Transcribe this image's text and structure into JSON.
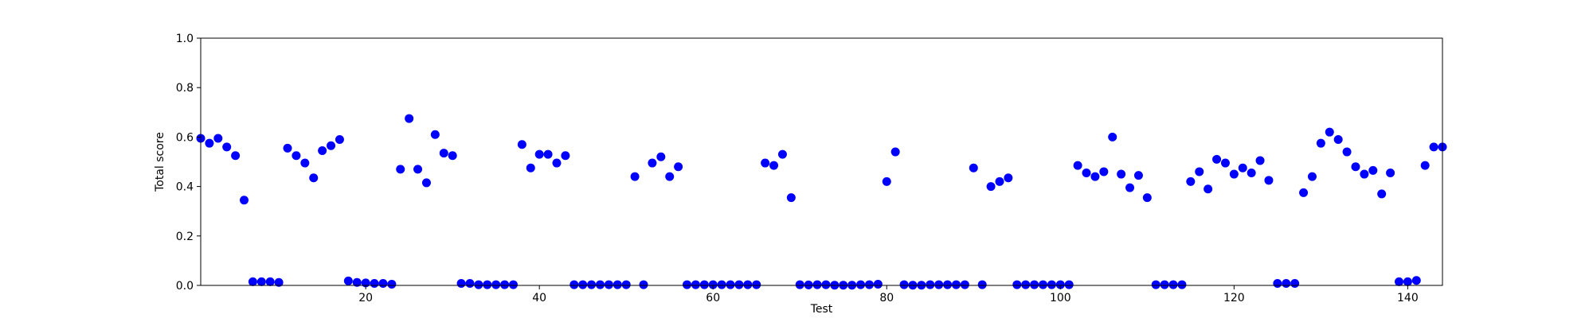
{
  "chart_data": {
    "type": "scatter",
    "title": "",
    "xlabel": "Test",
    "ylabel": "Total score",
    "xlim": [
      1,
      144
    ],
    "ylim": [
      0.0,
      1.0
    ],
    "x_ticks": [
      20,
      40,
      60,
      80,
      100,
      120,
      140
    ],
    "y_ticks": [
      0.0,
      0.2,
      0.4,
      0.6,
      0.8,
      1.0
    ],
    "x_tick_labels": [
      "20",
      "40",
      "60",
      "80",
      "100",
      "120",
      "140"
    ],
    "y_tick_labels": [
      "0.0",
      "0.2",
      "0.4",
      "0.6",
      "0.8",
      "1.0"
    ],
    "grid": false,
    "marker_color": "#0000ff",
    "series": [
      {
        "x": [
          1,
          2,
          3,
          4,
          5,
          6,
          7,
          8,
          9,
          10,
          11,
          12,
          13,
          14,
          15,
          16,
          17,
          18,
          19,
          20,
          21,
          22,
          23,
          24,
          25,
          26,
          27,
          28,
          29,
          30,
          31,
          32,
          33,
          34,
          35,
          36,
          37,
          38,
          39,
          40,
          41,
          42,
          43,
          44,
          45,
          46,
          47,
          48,
          49,
          50,
          51,
          52,
          53,
          54,
          55,
          56,
          57,
          58,
          59,
          60,
          61,
          62,
          63,
          64,
          65,
          66,
          67,
          68,
          69,
          70,
          71,
          72,
          73,
          74,
          75,
          76,
          77,
          78,
          79,
          80,
          81,
          82,
          83,
          84,
          85,
          86,
          87,
          88,
          89,
          90,
          91,
          92,
          93,
          94,
          95,
          96,
          97,
          98,
          99,
          100,
          101,
          102,
          103,
          104,
          105,
          106,
          107,
          108,
          109,
          110,
          111,
          112,
          113,
          114,
          115,
          116,
          117,
          118,
          119,
          120,
          121,
          122,
          123,
          124,
          125,
          126,
          127,
          128,
          129,
          130,
          131,
          132,
          133,
          134,
          135,
          136,
          137,
          138,
          139,
          140,
          141,
          142,
          143,
          144
        ],
        "y": [
          0.595,
          0.575,
          0.595,
          0.56,
          0.525,
          0.345,
          0.015,
          0.015,
          0.015,
          0.012,
          0.555,
          0.525,
          0.495,
          0.435,
          0.545,
          0.565,
          0.59,
          0.018,
          0.012,
          0.01,
          0.008,
          0.008,
          0.005,
          0.47,
          0.675,
          0.47,
          0.415,
          0.61,
          0.535,
          0.525,
          0.008,
          0.008,
          0.003,
          0.003,
          0.003,
          0.003,
          0.003,
          0.57,
          0.475,
          0.53,
          0.53,
          0.495,
          0.525,
          0.003,
          0.003,
          0.003,
          0.003,
          0.003,
          0.003,
          0.003,
          0.44,
          0.003,
          0.495,
          0.52,
          0.44,
          0.48,
          0.003,
          0.003,
          0.003,
          0.003,
          0.003,
          0.003,
          0.003,
          0.003,
          0.003,
          0.495,
          0.485,
          0.53,
          0.355,
          0.003,
          0.002,
          0.003,
          0.003,
          0.001,
          0.001,
          0.001,
          0.003,
          0.003,
          0.005,
          0.42,
          0.54,
          0.003,
          0.001,
          0.001,
          0.003,
          0.003,
          0.003,
          0.003,
          0.003,
          0.475,
          0.003,
          0.4,
          0.42,
          0.435,
          0.003,
          0.003,
          0.003,
          0.003,
          0.003,
          0.003,
          0.003,
          0.485,
          0.455,
          0.44,
          0.46,
          0.6,
          0.45,
          0.395,
          0.445,
          0.355,
          0.003,
          0.003,
          0.003,
          0.003,
          0.42,
          0.46,
          0.39,
          0.51,
          0.495,
          0.45,
          0.475,
          0.455,
          0.505,
          0.425,
          0.008,
          0.008,
          0.008,
          0.375,
          0.44,
          0.575,
          0.62,
          0.59,
          0.54,
          0.48,
          0.45,
          0.465,
          0.37,
          0.455,
          0.015,
          0.015,
          0.02,
          0.485,
          0.56,
          0.56
        ]
      }
    ]
  }
}
